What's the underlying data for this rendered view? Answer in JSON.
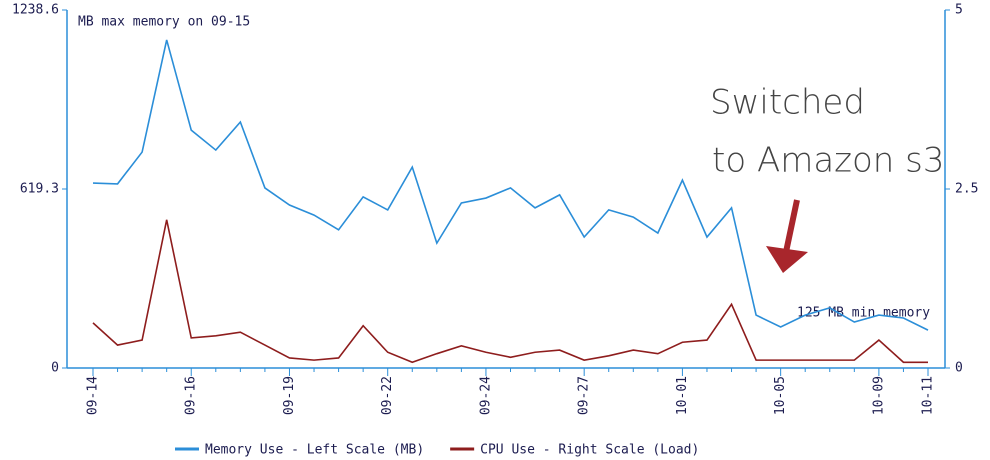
{
  "chart_data": {
    "type": "line",
    "annotations": [
      "MB max memory on 09-15",
      "125 MB min memory"
    ],
    "callout_lines": [
      "Switched",
      "to Amazon s3"
    ],
    "categories": [
      "09-14",
      null,
      null,
      null,
      "09-16",
      null,
      null,
      null,
      "09-19",
      null,
      null,
      null,
      "09-22",
      null,
      null,
      null,
      "09-24",
      null,
      null,
      null,
      "09-27",
      null,
      null,
      null,
      "10-01",
      null,
      null,
      null,
      "10-05",
      null,
      null,
      null,
      "10-09",
      null,
      "10-11"
    ],
    "series": [
      {
        "name": "Memory Use - Left Scale (MB)",
        "color": "#2b8ed8",
        "axis": "y",
        "values": [
          640,
          637,
          747,
          1135,
          823,
          754,
          851,
          623,
          564,
          529,
          478,
          592,
          547,
          695,
          432,
          571,
          588,
          623,
          554,
          599,
          453,
          547,
          522,
          467,
          650,
          453,
          554,
          183,
          142,
          183,
          208,
          159,
          183,
          173,
          131
        ]
      },
      {
        "name": "CPU Use - Right Scale (Load)",
        "color": "#8e1d1d",
        "axis": "y2",
        "values": [
          0.63,
          0.32,
          0.39,
          2.07,
          0.42,
          0.45,
          0.5,
          0.32,
          0.14,
          0.11,
          0.14,
          0.59,
          0.22,
          0.08,
          0.2,
          0.31,
          0.22,
          0.15,
          0.22,
          0.25,
          0.11,
          0.17,
          0.25,
          0.2,
          0.36,
          0.39,
          0.89,
          0.11,
          0.11,
          0.11,
          0.11,
          0.11,
          0.39,
          0.08,
          0.08
        ]
      }
    ],
    "ylim": [
      0,
      1238.6
    ],
    "yticks": [
      0,
      619.3,
      1238.6
    ],
    "y2lim": [
      0,
      5
    ],
    "y2ticks": [
      0,
      2.5,
      5
    ]
  }
}
